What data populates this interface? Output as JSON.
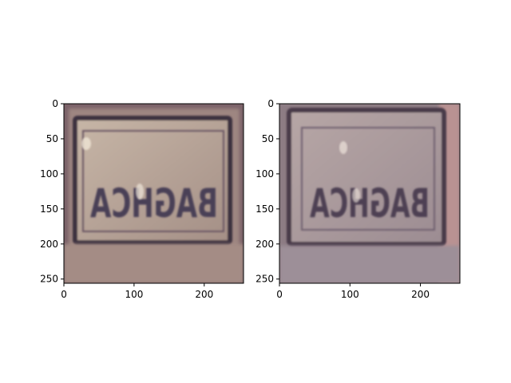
{
  "panels": [
    {
      "name": "left",
      "xlim": [
        0,
        256
      ],
      "ylim": [
        256,
        0
      ],
      "xticks": [
        0,
        100,
        200
      ],
      "yticks": [
        0,
        50,
        100,
        150,
        200,
        250
      ],
      "colors": {
        "frame": "#7a6169",
        "plate": "#b29e92",
        "border": "#3d3240",
        "glyph": "#4a3f56",
        "bottom": "#a89089"
      }
    },
    {
      "name": "right",
      "xlim": [
        0,
        256
      ],
      "ylim": [
        256,
        0
      ],
      "xticks": [
        0,
        100,
        200
      ],
      "yticks": [
        0,
        50,
        100,
        150,
        200,
        250
      ],
      "colors": {
        "frame": "#8a7a82",
        "plate": "#a89898",
        "border": "#4a3a48",
        "glyph": "#4d4152",
        "bottom": "#9a8a93"
      }
    }
  ],
  "plate_text": "BAGHCA"
}
